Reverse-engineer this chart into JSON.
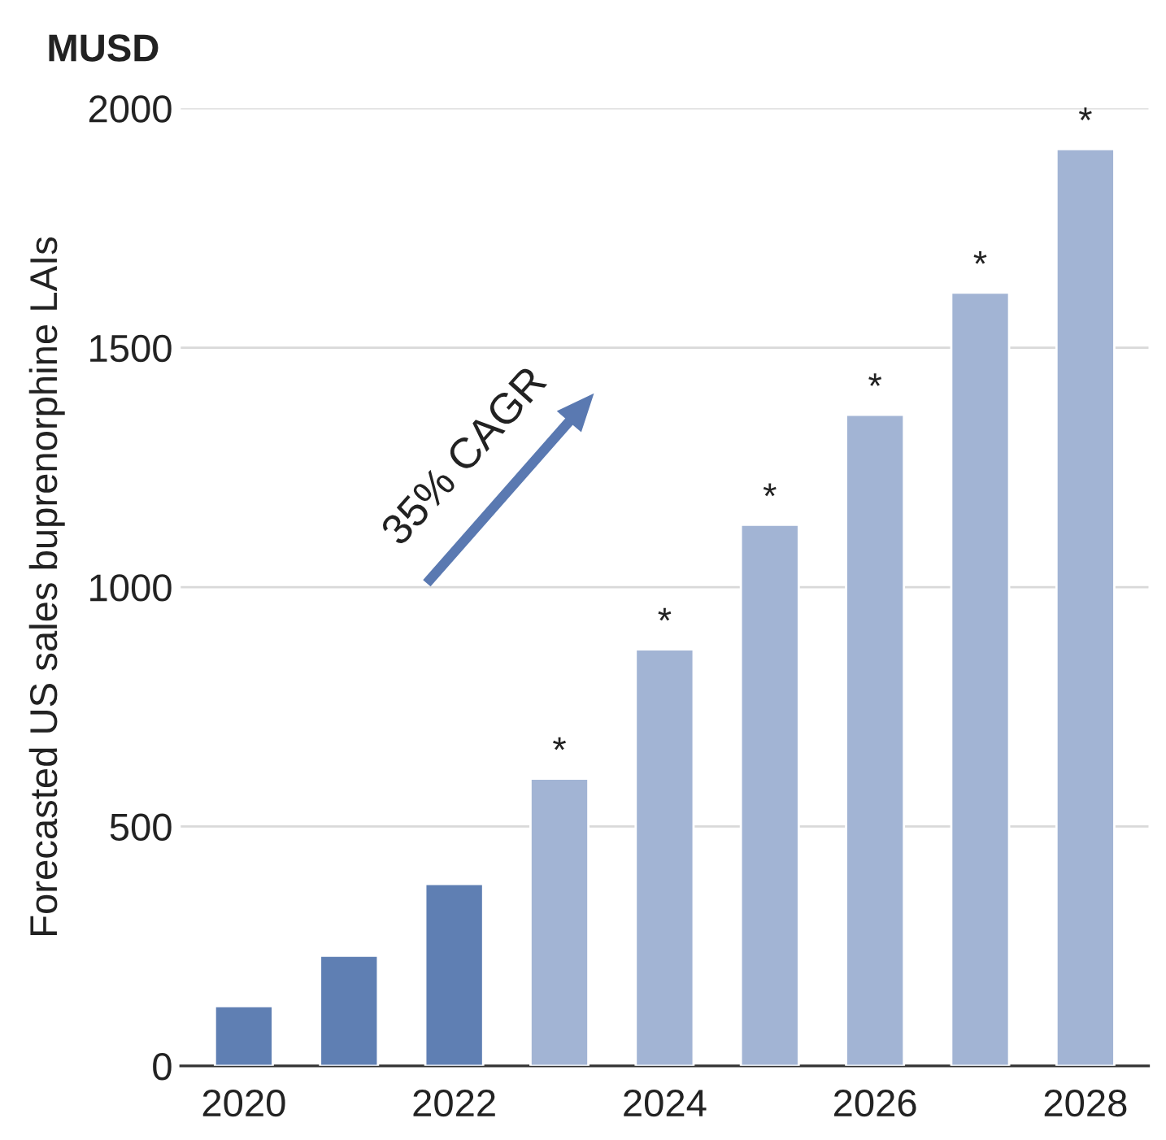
{
  "chart_data": {
    "type": "bar",
    "ylabel": "Forecasted US sales buprenorphine LAIs",
    "x": [
      2020,
      2021,
      2022,
      2023,
      2024,
      2025,
      2026,
      2027,
      2028
    ],
    "values": [
      125,
      230,
      380,
      600,
      870,
      1130,
      1360,
      1615,
      1915
    ],
    "colors": [
      "#5f7fb3",
      "#5f7fb3",
      "#5f7fb3",
      "#a2b4d4",
      "#a2b4d4",
      "#a2b4d4",
      "#a2b4d4",
      "#a2b4d4",
      "#a2b4d4"
    ],
    "xlim": [
      2019.4,
      2028.6
    ],
    "xticks": [
      2020,
      2022,
      2024,
      2026,
      2028
    ],
    "ylim": [
      0,
      2000
    ],
    "yticks": [
      0,
      500,
      1000,
      1500,
      2000
    ],
    "grid": "y",
    "annotations": [
      "MUSD",
      "35% CAGR",
      {
        "text": "*",
        "x": 2023,
        "y": 600
      },
      {
        "text": "*",
        "x": 2024,
        "y": 870
      },
      {
        "text": "*",
        "x": 2025,
        "y": 1130
      },
      {
        "text": "*",
        "x": 2026,
        "y": 1360
      },
      {
        "text": "*",
        "x": 2027,
        "y": 1615
      },
      {
        "text": "*",
        "x": 2028,
        "y": 1915
      }
    ]
  }
}
